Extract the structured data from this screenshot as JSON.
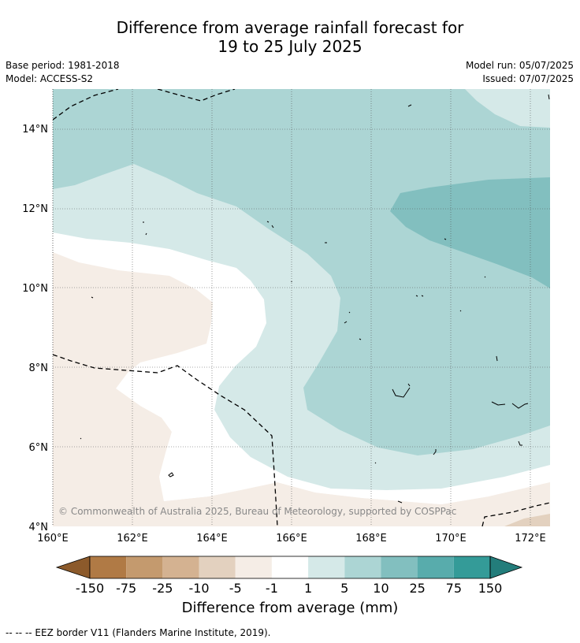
{
  "title_line1": "Difference from average rainfall forecast for",
  "title_line2": "19 to 25 July 2025",
  "base_period": "Base period: 1981-2018",
  "model": "Model: ACCESS-S2",
  "model_run": "Model run: 05/07/2025",
  "issued": "Issued: 07/07/2025",
  "copyright": "© Commonwealth of Australia 2025, Bureau of Meteorology, supported by COSPPac",
  "map": {
    "lon_range": [
      160,
      172.5
    ],
    "lat_range": [
      4,
      15
    ],
    "x_ticks": [
      "160°E",
      "162°E",
      "164°E",
      "166°E",
      "168°E",
      "170°E",
      "172°E"
    ],
    "y_ticks": [
      "4°N",
      "6°N",
      "8°N",
      "10°N",
      "12°N",
      "14°N"
    ]
  },
  "colorbar": {
    "labels": [
      "-150",
      "-75",
      "-25",
      "-10",
      "-5",
      "-1",
      "1",
      "5",
      "10",
      "25",
      "75",
      "150"
    ],
    "colors": [
      "#8c5a2b",
      "#b07a45",
      "#c49a6e",
      "#d4b291",
      "#e3d1bf",
      "#f5ede6",
      "#ffffff",
      "#d5e9e8",
      "#acd5d4",
      "#82bfbf",
      "#58acac",
      "#349b98",
      "#237d7b"
    ],
    "title": "Difference from average (mm)"
  },
  "footnote": "-- -- -- EEZ border V11 (Flanders Marine Institute, 2019)."
}
